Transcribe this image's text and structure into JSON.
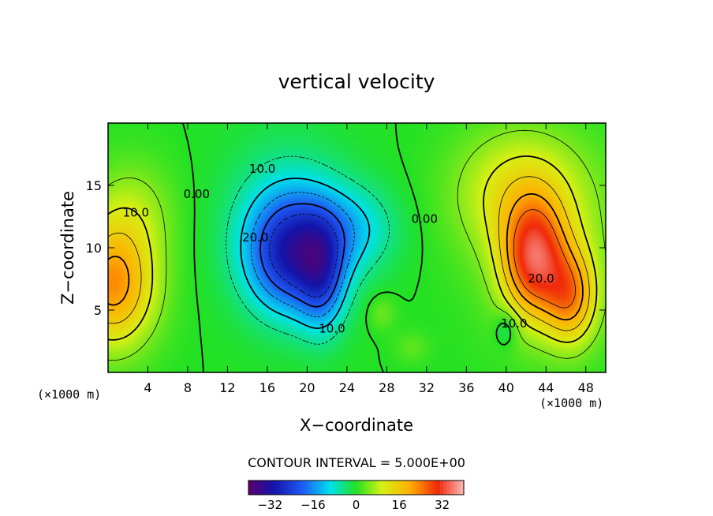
{
  "chart_data": {
    "type": "heatmap",
    "title": "vertical velocity",
    "xlabel": "X−coordinate",
    "ylabel": "Z−coordinate",
    "x_unit_label": "(×1000 m)",
    "y_unit_label": "(×1000 m)",
    "xlim": [
      0,
      50
    ],
    "ylim": [
      0,
      20
    ],
    "x_ticks": [
      4,
      8,
      12,
      16,
      20,
      24,
      28,
      32,
      36,
      40,
      44,
      48
    ],
    "x_tick_labels": [
      "4",
      "8",
      "12",
      "16",
      "20",
      "24",
      "28",
      "32",
      "36",
      "40",
      "44",
      "48"
    ],
    "y_ticks": [
      5,
      10,
      15
    ],
    "y_tick_labels": [
      "5",
      "10",
      "15"
    ],
    "contour_interval_text": "CONTOUR INTERVAL = 5.000E+00",
    "contour_labels": [
      {
        "text": "10.0",
        "x": 2.8,
        "z": 12.5
      },
      {
        "text": "0.00",
        "x": 8.9,
        "z": 14.0
      },
      {
        "text": "10.0",
        "x": 15.5,
        "z": 16.0
      },
      {
        "text": "20.0",
        "x": 14.8,
        "z": 10.5
      },
      {
        "text": "10.0",
        "x": 22.5,
        "z": 3.2
      },
      {
        "text": "0.00",
        "x": 31.8,
        "z": 12.0
      },
      {
        "text": "20.0",
        "x": 43.5,
        "z": 7.2
      },
      {
        "text": "10.0",
        "x": 40.8,
        "z": 3.6
      }
    ],
    "colorbar": {
      "range": [
        -40,
        40
      ],
      "ticks": [
        -32,
        -16,
        0,
        16,
        32
      ],
      "tick_labels": [
        "−32",
        "−16",
        "0",
        "16",
        "32"
      ]
    },
    "features": [
      {
        "kind": "downdraft",
        "x": 18.5,
        "z": 9.5,
        "value": -28
      },
      {
        "kind": "downdraft",
        "x": 21.5,
        "z": 7.5,
        "value": -22
      },
      {
        "kind": "downdraft",
        "x": 24.0,
        "z": 11.5,
        "value": -12
      },
      {
        "kind": "updraft",
        "x": 1.0,
        "z": 7.0,
        "value": 22
      },
      {
        "kind": "updraft",
        "x": 42.8,
        "z": 9.0,
        "value": 30
      },
      {
        "kind": "updraft",
        "x": 46.5,
        "z": 6.0,
        "value": 24
      },
      {
        "kind": "updraft",
        "x": 40.0,
        "z": 16.0,
        "value": 8
      }
    ]
  }
}
